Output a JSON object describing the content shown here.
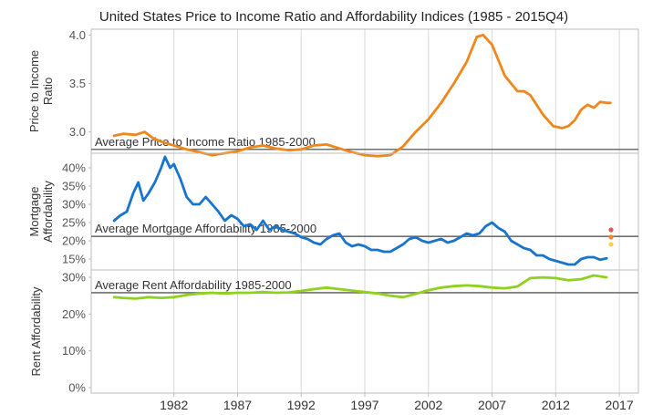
{
  "colors": {
    "price": "#f0871a",
    "mortgage": "#1874cd",
    "rent": "#8ed21e",
    "avg_line": "#707070",
    "grid": "#d8d8d8",
    "frame": "#bdbdbd",
    "legend_dots": [
      "#e05a4f",
      "#f08a1e",
      "#f2d64b"
    ]
  },
  "chart_data": {
    "type": "line",
    "title": "United States Price to Income Ratio and Affordability Indices (1985 - 2015Q4)",
    "x_ticks": [
      "1982",
      "1987",
      "1992",
      "1997",
      "2002",
      "2007",
      "2012",
      "2017"
    ],
    "xlim": [
      1975.5,
      2018.5
    ],
    "panels": [
      {
        "id": "price",
        "ylabel": "Price to Income Ratio",
        "ylim": [
          2.78,
          4.06
        ],
        "yticks": [
          {
            "value": 3.0,
            "label": "3.0"
          },
          {
            "value": 3.5,
            "label": "3.5"
          },
          {
            "value": 4.0,
            "label": "4.0"
          }
        ],
        "average": {
          "value": 2.82,
          "label": "Average Price to Income Ratio 1985-2000"
        },
        "series": {
          "name": "Price to Income Ratio",
          "x": [
            1977.3,
            1978.0,
            1979.0,
            1979.7,
            1980.3,
            1981.0,
            1982.0,
            1983.0,
            1984.0,
            1985.0,
            1986.0,
            1987.0,
            1988.0,
            1989.0,
            1990.0,
            1991.0,
            1992.0,
            1993.0,
            1994.0,
            1995.0,
            1996.0,
            1997.0,
            1998.0,
            1999.0,
            2000.0,
            2001.0,
            2002.0,
            2003.0,
            2004.0,
            2005.0,
            2005.8,
            2006.3,
            2007.0,
            2008.0,
            2009.0,
            2009.5,
            2010.0,
            2011.0,
            2011.8,
            2012.5,
            2013.0,
            2013.5,
            2014.0,
            2014.5,
            2015.0,
            2015.5,
            2016.0,
            2016.3
          ],
          "values": [
            2.96,
            2.98,
            2.97,
            3.0,
            2.94,
            2.9,
            2.86,
            2.82,
            2.79,
            2.76,
            2.78,
            2.8,
            2.84,
            2.86,
            2.83,
            2.81,
            2.82,
            2.86,
            2.87,
            2.83,
            2.79,
            2.76,
            2.75,
            2.76,
            2.85,
            3.0,
            3.13,
            3.3,
            3.5,
            3.72,
            3.98,
            4.0,
            3.9,
            3.58,
            3.42,
            3.42,
            3.38,
            3.18,
            3.06,
            3.04,
            3.06,
            3.12,
            3.23,
            3.28,
            3.25,
            3.31,
            3.3,
            3.3
          ]
        }
      },
      {
        "id": "mortgage",
        "ylabel": "Mortgage Affordability",
        "ylim": [
          12,
          44
        ],
        "yticks": [
          {
            "value": 15,
            "label": "15%"
          },
          {
            "value": 20,
            "label": "20%"
          },
          {
            "value": 25,
            "label": "25%"
          },
          {
            "value": 30,
            "label": "30%"
          },
          {
            "value": 35,
            "label": "35%"
          },
          {
            "value": 40,
            "label": "40%"
          }
        ],
        "average": {
          "value": 21.2,
          "label": "Average Mortgage Affordability 1985-2000"
        },
        "series": {
          "name": "Mortgage Affordability",
          "x": [
            1977.3,
            1977.8,
            1978.3,
            1978.8,
            1979.2,
            1979.6,
            1980.0,
            1980.5,
            1981.0,
            1981.3,
            1981.7,
            1982.0,
            1982.5,
            1983.0,
            1983.5,
            1984.0,
            1984.5,
            1985.0,
            1985.5,
            1986.0,
            1986.5,
            1987.0,
            1987.5,
            1988.0,
            1988.5,
            1989.0,
            1989.5,
            1990.0,
            1990.5,
            1991.0,
            1991.5,
            1992.0,
            1992.5,
            1993.0,
            1993.5,
            1994.0,
            1994.5,
            1995.0,
            1995.5,
            1996.0,
            1996.5,
            1997.0,
            1997.5,
            1998.0,
            1998.5,
            1999.0,
            1999.5,
            2000.0,
            2000.5,
            2001.0,
            2001.5,
            2002.0,
            2002.5,
            2003.0,
            2003.5,
            2004.0,
            2004.5,
            2005.0,
            2005.5,
            2006.0,
            2006.5,
            2007.0,
            2007.5,
            2008.0,
            2008.5,
            2009.0,
            2009.5,
            2010.0,
            2010.5,
            2011.0,
            2011.5,
            2012.0,
            2012.5,
            2013.0,
            2013.5,
            2014.0,
            2014.5,
            2015.0,
            2015.5,
            2016.0
          ],
          "values": [
            25.5,
            27,
            28,
            33,
            36,
            31,
            33,
            36,
            40,
            43,
            40,
            41,
            37,
            32,
            30,
            30,
            32,
            30,
            28,
            25.5,
            27,
            26,
            24,
            24.5,
            23,
            25.5,
            23,
            24,
            23,
            22.5,
            22,
            21,
            20.5,
            19.5,
            19,
            20.5,
            21.5,
            22,
            19.5,
            18.5,
            19,
            18.5,
            17.5,
            17.5,
            17,
            17,
            18,
            19,
            20.5,
            21,
            20,
            19.5,
            20,
            20.5,
            19.5,
            20,
            21,
            22,
            21.5,
            22,
            24,
            25,
            23.5,
            22.5,
            20,
            19,
            18,
            17.5,
            16,
            16,
            15,
            14.5,
            14,
            13.5,
            13.5,
            15,
            15.5,
            15.5,
            14.8,
            15.2
          ]
        }
      },
      {
        "id": "rent",
        "ylabel": "Rent Affordability",
        "ylim": [
          -1.5,
          32
        ],
        "yticks": [
          {
            "value": 0,
            "label": "0%"
          },
          {
            "value": 10,
            "label": "10%"
          },
          {
            "value": 20,
            "label": "20%"
          },
          {
            "value": 30,
            "label": "30%"
          }
        ],
        "average": {
          "value": 25.8,
          "label": "Average Rent Affordability 1985-2000"
        },
        "series": {
          "name": "Rent Affordability",
          "x": [
            1977.3,
            1978.0,
            1979.0,
            1980.0,
            1981.0,
            1982.0,
            1983.0,
            1984.0,
            1985.0,
            1986.0,
            1987.0,
            1988.0,
            1989.0,
            1990.0,
            1991.0,
            1992.0,
            1993.0,
            1994.0,
            1995.0,
            1996.0,
            1997.0,
            1998.0,
            1999.0,
            2000.0,
            2001.0,
            2002.0,
            2003.0,
            2004.0,
            2005.0,
            2006.0,
            2007.0,
            2008.0,
            2009.0,
            2010.0,
            2011.0,
            2012.0,
            2013.0,
            2014.0,
            2015.0,
            2016.0
          ],
          "values": [
            24.6,
            24.4,
            24.2,
            24.6,
            24.4,
            24.6,
            25.2,
            25.6,
            25.8,
            25.6,
            25.8,
            25.8,
            26.0,
            25.8,
            25.9,
            26.3,
            26.8,
            27.2,
            26.8,
            26.4,
            26.0,
            25.6,
            25.0,
            24.6,
            25.5,
            26.5,
            27.2,
            27.6,
            27.8,
            27.6,
            27.2,
            27.0,
            27.5,
            29.8,
            30.0,
            29.8,
            29.2,
            29.5,
            30.5,
            30.0
          ]
        }
      }
    ]
  }
}
